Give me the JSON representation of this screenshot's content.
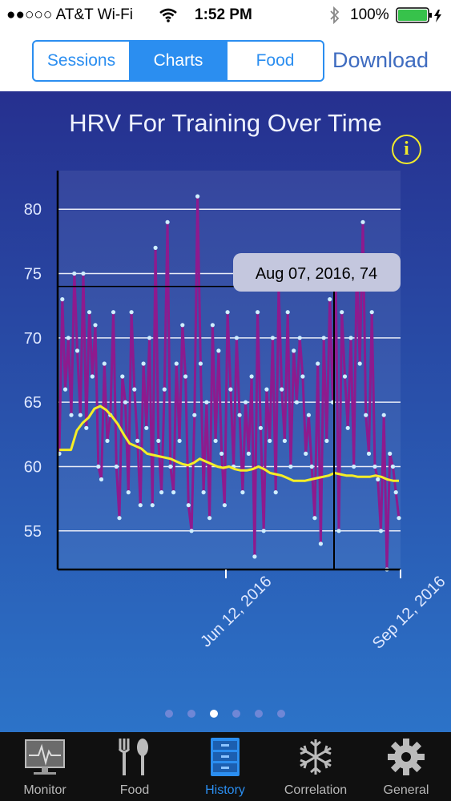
{
  "status_bar": {
    "carrier": "●●○○○ AT&T Wi-Fi",
    "time": "1:52 PM",
    "battery": "100%"
  },
  "nav": {
    "segments": [
      "Sessions",
      "Charts",
      "Food"
    ],
    "selected_segment": "Charts",
    "download_label": "Download"
  },
  "chart_data": {
    "type": "line",
    "title": "HRV For Training Over Time",
    "xlabel": "",
    "ylabel": "",
    "x_tick_labels": [
      "Jun 12, 2016",
      "Sep 12, 2016"
    ],
    "y_ticks": [
      55,
      60,
      65,
      70,
      75,
      80
    ],
    "ylim": [
      52,
      83
    ],
    "grid": true,
    "tooltip": "Aug 07, 2016, 74",
    "crosshair": {
      "x": "Aug 07, 2016",
      "y": 74
    },
    "series": [
      {
        "color": "#8e1a8e",
        "marker_color": "#cfefff",
        "values": [
          61,
          73,
          66,
          70,
          64,
          75,
          69,
          64,
          75,
          63,
          72,
          67,
          71,
          60,
          59,
          68,
          62,
          64,
          72,
          60,
          56,
          67,
          65,
          58,
          72,
          66,
          62,
          57,
          68,
          63,
          70,
          57,
          77,
          62,
          58,
          66,
          79,
          60,
          58,
          68,
          62,
          71,
          67,
          57,
          55,
          64,
          81,
          68,
          58,
          65,
          56,
          71,
          62,
          69,
          61,
          57,
          72,
          66,
          60,
          70,
          64,
          58,
          65,
          61,
          67,
          53,
          72,
          63,
          55,
          66,
          62,
          70,
          58,
          74,
          66,
          62,
          72,
          60,
          69,
          65,
          70,
          67,
          61,
          64,
          60,
          56,
          68,
          54,
          70,
          62,
          73,
          65,
          74,
          55,
          72,
          67,
          63,
          70,
          60,
          76,
          68,
          79,
          64,
          61,
          72,
          60,
          59,
          55,
          64,
          52,
          61,
          60,
          58,
          56
        ]
      },
      {
        "color": "#f5ee26",
        "values": [
          61.3,
          61.3,
          61.3,
          62.8,
          63.4,
          63.8,
          64.5,
          64.7,
          64.4,
          63.9,
          63.3,
          62.5,
          61.8,
          61.6,
          61.4,
          61.0,
          60.9,
          60.8,
          60.7,
          60.6,
          60.4,
          60.2,
          60.1,
          60.3,
          60.6,
          60.4,
          60.2,
          60.0,
          59.9,
          60.0,
          59.8,
          59.7,
          59.7,
          59.8,
          60.0,
          59.8,
          59.5,
          59.4,
          59.3,
          59.1,
          58.9,
          58.9,
          58.9,
          59.0,
          59.1,
          59.2,
          59.3,
          59.5,
          59.4,
          59.3,
          59.3,
          59.2,
          59.2,
          59.2,
          59.3,
          59.2,
          59.0,
          58.9,
          58.9
        ]
      }
    ]
  },
  "pager": {
    "count": 6,
    "active_index": 2
  },
  "tabs": [
    {
      "label": "Monitor",
      "icon": "monitor-icon"
    },
    {
      "label": "Food",
      "icon": "fork-spoon-icon"
    },
    {
      "label": "History",
      "icon": "file-cabinet-icon"
    },
    {
      "label": "Correlation",
      "icon": "snowflake-icon"
    },
    {
      "label": "General",
      "icon": "gear-icon"
    }
  ],
  "active_tab": "History",
  "colors": {
    "accent": "#2b8ef0",
    "background_top": "#26308f",
    "background_bottom": "#2c73c8",
    "hrv_line": "#8e1a8e",
    "average_line": "#f5ee26"
  }
}
